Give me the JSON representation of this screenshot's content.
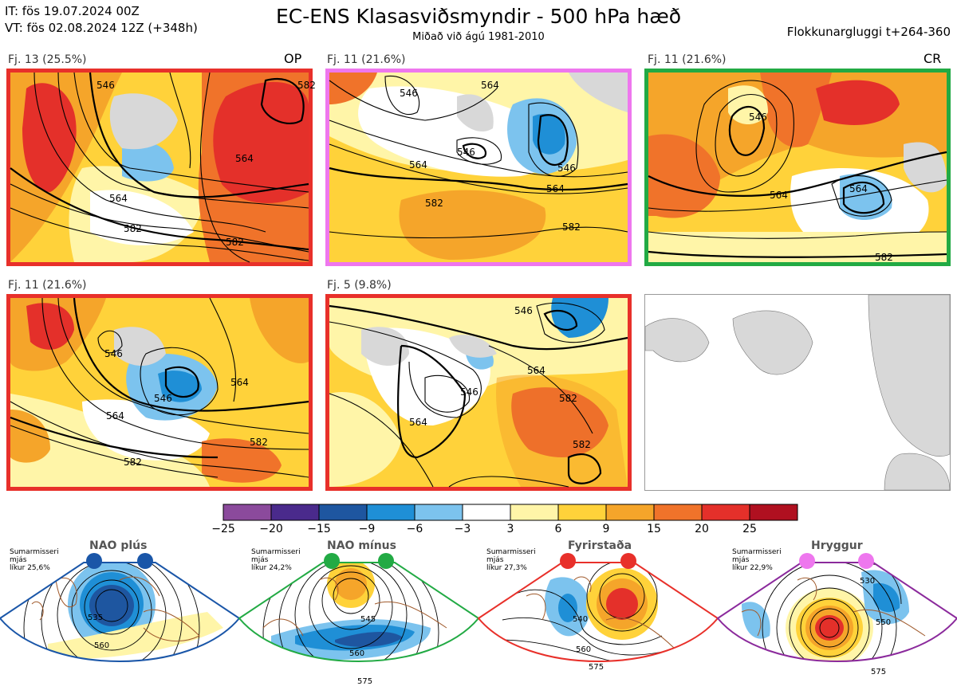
{
  "header": {
    "it_line": "IT: fös 19.07.2024 00Z",
    "vt_line": "VT: fös 02.08.2024 12Z  (+348h)",
    "title": "EC-ENS Klasasviðsmyndir - 500 hPa hæð",
    "subtitle": "Miðað við ágú 1981-2010",
    "window": "Flokkunargluggi t+264-360"
  },
  "panels": [
    {
      "label": "Fj. 13 (25.5%)",
      "tag": "OP",
      "border": "#e8302a",
      "contours": [
        "564",
        "582",
        "582",
        "564",
        "582",
        "546"
      ]
    },
    {
      "label": "Fj. 11 (21.6%)",
      "tag": "",
      "border": "#ee77ee",
      "contours": [
        "564",
        "582",
        "582",
        "546",
        "546",
        "564",
        "564",
        "546"
      ]
    },
    {
      "label": "Fj. 11 (21.6%)",
      "tag": "CR",
      "border": "#22aa44",
      "contours": [
        "546",
        "564",
        "564",
        "582"
      ]
    },
    {
      "label": "Fj. 11 (21.6%)",
      "tag": "",
      "border": "#e8302a",
      "contours": [
        "564",
        "582",
        "582",
        "546",
        "564",
        "546"
      ]
    },
    {
      "label": "Fj. 5 (9.8%)",
      "tag": "",
      "border": "#e8302a",
      "contours": [
        "564",
        "546",
        "564",
        "582",
        "582",
        "546"
      ]
    },
    {
      "label": "",
      "tag": "",
      "border": "#9a9a9a",
      "contours": []
    }
  ],
  "colorbar": {
    "ticks": [
      "−25",
      "−20",
      "−15",
      "−9",
      "−6",
      "−3",
      "3",
      "6",
      "9",
      "15",
      "20",
      "25"
    ],
    "colors": [
      "#8b4a9c",
      "#4a2a8c",
      "#1e56a0",
      "#1f8fd6",
      "#7cc3ee",
      "#ffffff",
      "#fff5a8",
      "#ffd23a",
      "#f5a52a",
      "#f0732a",
      "#e4302a",
      "#b01020"
    ]
  },
  "regimes": [
    {
      "title": "NAO plús",
      "note": [
        "Sumarmisseri",
        "mjás",
        "líkur 25,6%"
      ],
      "color": "#1a56a8",
      "contours": [
        "535",
        "560"
      ]
    },
    {
      "title": "NAO mínus",
      "note": [
        "Sumarmisseri",
        "mjás",
        "líkur 24,2%"
      ],
      "color": "#22aa44",
      "contours": [
        "545",
        "560",
        "575"
      ]
    },
    {
      "title": "Fyrirstaða",
      "note": [
        "Sumarmisseri",
        "mjás",
        "líkur 27,3%"
      ],
      "color": "#e8302a",
      "contours": [
        "540",
        "560",
        "575"
      ]
    },
    {
      "title": "Hryggur",
      "note": [
        "Sumarmisseri",
        "mjás",
        "líkur 22,9%"
      ],
      "color": "#ee77ee",
      "contours": [
        "530",
        "550",
        "575"
      ]
    }
  ]
}
